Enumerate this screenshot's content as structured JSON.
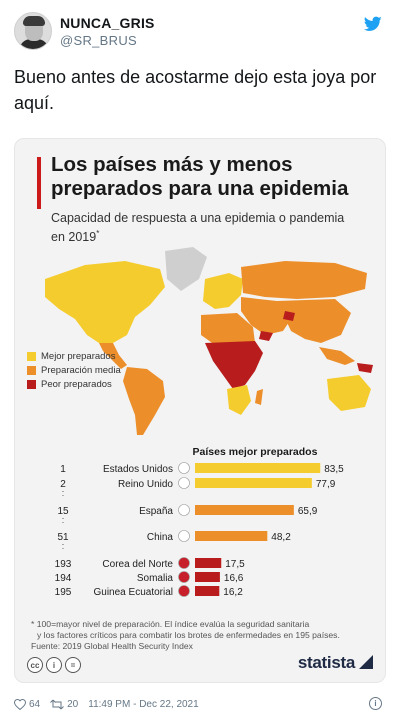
{
  "tweet": {
    "display_name": "NUNCA_GRIS",
    "handle": "@SR_BRUS",
    "text": "Bueno antes de acostarme dejo esta joya por aquí.",
    "likes": "64",
    "retweets": "20",
    "timestamp": "11:49 PM - Dec 22, 2021",
    "brand_color": "#1da1f2",
    "icons": [
      "twitter-bird-icon",
      "heart-icon",
      "retweet-icon",
      "info-icon"
    ]
  },
  "infographic": {
    "title": "Los países más y menos preparados para una epidemia",
    "subtitle": "Capacidad de respuesta a una epidemia o pandemia en 2019",
    "subtitle_mark": "*",
    "legend": [
      {
        "label": "Mejor preparados",
        "color": "#f5cc2e"
      },
      {
        "label": "Preparación media",
        "color": "#ec8f2b"
      },
      {
        "label": "Peor preparados",
        "color": "#b81c1c"
      }
    ],
    "footnote_line1": "* 100=mayor nivel de preparación. El índice evalúa la seguridad sanitaria",
    "footnote_line2": "y los factores críticos para combatir los brotes de enfermedades en 195 países.",
    "source": "Fuente: 2019 Global Health Security Index",
    "license_icons": [
      "cc-icon",
      "info-icon",
      "equals-icon"
    ],
    "brand": "statista",
    "accent_color": "#cc1a1a"
  },
  "chart_data": {
    "type": "bar",
    "orientation": "horizontal",
    "title": "Países mejor preparados",
    "ranks": [
      "1",
      "2",
      "15",
      "51",
      "193",
      "194",
      "195"
    ],
    "categories": [
      "Estados Unidos",
      "Reino Unido",
      "España",
      "China",
      "Corea del Norte",
      "Somalia",
      "Guinea Ecuatorial"
    ],
    "values": [
      83.5,
      77.9,
      65.9,
      48.2,
      17.5,
      16.6,
      16.2
    ],
    "value_labels": [
      "83,5",
      "77,9",
      "65,9",
      "48,2",
      "17,5",
      "16,6",
      "16,2"
    ],
    "flags": [
      "flag-us-icon",
      "flag-uk-icon",
      "flag-es-icon",
      "flag-cn-icon",
      "flag-kp-icon",
      "flag-so-icon",
      "flag-gq-icon"
    ],
    "bar_colors": [
      "#f5cc2e",
      "#f5cc2e",
      "#ec8f2b",
      "#ec8f2b",
      "#b81c1c",
      "#b81c1c",
      "#b81c1c"
    ],
    "gap_markers": ":",
    "xlim": [
      0,
      100
    ]
  }
}
